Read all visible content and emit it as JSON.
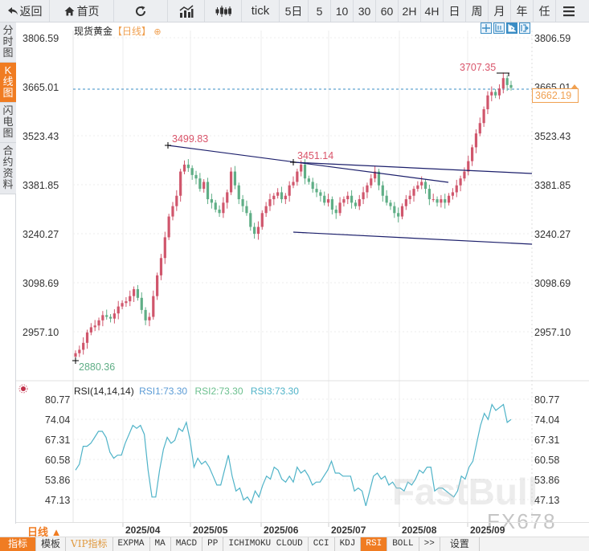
{
  "toolbar": {
    "back": "返回",
    "home": "首页",
    "refresh_icon": "refresh-icon",
    "chart_type_icon": "line-chart-icon",
    "candle_icon": "candlestick-icon",
    "periods": [
      "tick",
      "5日",
      "5",
      "10",
      "30",
      "60",
      "2H",
      "4H",
      "日",
      "周",
      "月",
      "年",
      "任"
    ],
    "menu_icon": "hamburger-icon"
  },
  "sidebar": {
    "items": [
      {
        "label": "分时图",
        "active": false
      },
      {
        "label": "K线图",
        "active": true
      },
      {
        "label": "闪电图",
        "active": false
      },
      {
        "label": "合约资料",
        "active": false
      }
    ]
  },
  "chart": {
    "symbol": "现货黄金",
    "period_tag": "【日线】",
    "current_price": "3662.19",
    "period_selector": "日线 ▲"
  },
  "chart_data": [
    {
      "type": "candlestick",
      "title": "现货黄金【日线】",
      "y_ticks": [
        "3806.59",
        "3665.01",
        "3523.43",
        "3381.85",
        "3240.27",
        "3098.69",
        "2957.10"
      ],
      "x_ticks": [
        "2025/04",
        "2025/05",
        "2025/06",
        "2025/07",
        "2025/08",
        "2025/09"
      ],
      "annotations": [
        {
          "label": "3499.83",
          "type": "high"
        },
        {
          "label": "3451.14",
          "type": "high"
        },
        {
          "label": "3707.35",
          "type": "high"
        },
        {
          "label": "2880.36",
          "type": "low"
        }
      ],
      "current_price": 3662.19,
      "trendlines": [
        {
          "from": [
            3499.83,
            "2025/04 mid"
          ],
          "to": [
            3390,
            "2025/08 mid"
          ]
        },
        {
          "from": [
            3451.14,
            "2025/06 early"
          ],
          "to": [
            3410,
            "2025/09 end"
          ]
        },
        {
          "from": [
            3255,
            "2025/06 early"
          ],
          "to": [
            3225,
            "2025/09 end"
          ]
        }
      ],
      "close_series_approx": [
        2895,
        2905,
        2925,
        2955,
        2970,
        2975,
        2990,
        3005,
        3000,
        2995,
        3010,
        3030,
        3040,
        3045,
        3060,
        3080,
        3055,
        3020,
        2990,
        3000,
        3060,
        3120,
        3170,
        3230,
        3290,
        3320,
        3350,
        3420,
        3440,
        3430,
        3410,
        3400,
        3370,
        3390,
        3340,
        3330,
        3310,
        3300,
        3330,
        3360,
        3420,
        3380,
        3340,
        3320,
        3300,
        3260,
        3240,
        3260,
        3300,
        3320,
        3340,
        3350,
        3360,
        3340,
        3350,
        3380,
        3390,
        3420,
        3440,
        3400,
        3390,
        3370,
        3360,
        3350,
        3330,
        3340,
        3310,
        3300,
        3330,
        3340,
        3350,
        3330,
        3320,
        3340,
        3360,
        3380,
        3400,
        3420,
        3380,
        3350,
        3330,
        3320,
        3300,
        3290,
        3320,
        3340,
        3350,
        3370,
        3380,
        3390,
        3370,
        3340,
        3340,
        3330,
        3340,
        3330,
        3350,
        3360,
        3380,
        3400,
        3420,
        3450,
        3490,
        3530,
        3560,
        3600,
        3640,
        3650,
        3640,
        3660,
        3690,
        3670,
        3662
      ]
    },
    {
      "type": "line",
      "title": "RSI(14,14,14)",
      "legend": [
        {
          "name": "RSI1",
          "value": "73.30",
          "color": "#5b9bd5"
        },
        {
          "name": "RSI2",
          "value": "73.30",
          "color": "#6bbf8e"
        },
        {
          "name": "RSI3",
          "value": "73.30",
          "color": "#4fb3c8"
        }
      ],
      "y_ticks": [
        "80.77",
        "74.04",
        "67.31",
        "60.58",
        "53.86",
        "47.13"
      ],
      "values_approx": [
        57,
        59,
        65,
        65,
        66,
        68,
        70,
        70,
        68,
        63,
        61,
        62,
        62,
        66,
        69,
        72,
        71,
        72,
        69,
        57,
        48,
        48,
        57,
        64,
        68,
        66,
        67,
        71,
        70,
        73,
        67,
        58,
        61,
        59,
        60,
        58,
        55,
        52,
        52,
        57,
        62,
        55,
        50,
        51,
        47,
        48,
        46,
        50,
        48,
        52,
        55,
        54,
        58,
        57,
        54,
        53,
        55,
        53,
        58,
        56,
        57,
        55,
        52,
        53,
        53,
        55,
        57,
        60,
        56,
        56,
        55,
        55,
        55,
        50,
        51,
        50,
        45,
        50,
        55,
        56,
        54,
        55,
        52,
        53,
        51,
        51,
        50,
        53,
        52,
        54,
        57,
        56,
        58,
        58,
        50,
        51,
        51,
        50,
        49,
        48,
        50,
        55,
        54,
        58,
        60,
        66,
        72,
        76,
        74,
        79,
        77,
        78,
        79,
        73,
        74
      ]
    }
  ],
  "rsi": {
    "label": "RSI(14,14,14)",
    "rsi1": "RSI1:73.30",
    "rsi2": "RSI2:73.30",
    "rsi3": "RSI3:73.30"
  },
  "indicators": [
    "指标",
    "模板",
    "VIP指标",
    "EXPMA",
    "MA",
    "MACD",
    "PP",
    "ICHIMOKU CLOUD",
    "CCI",
    "KDJ",
    "RSI",
    "BOLL",
    ">>",
    "设置"
  ],
  "watermark": {
    "brand": "FastBull",
    "code": "FX678"
  }
}
